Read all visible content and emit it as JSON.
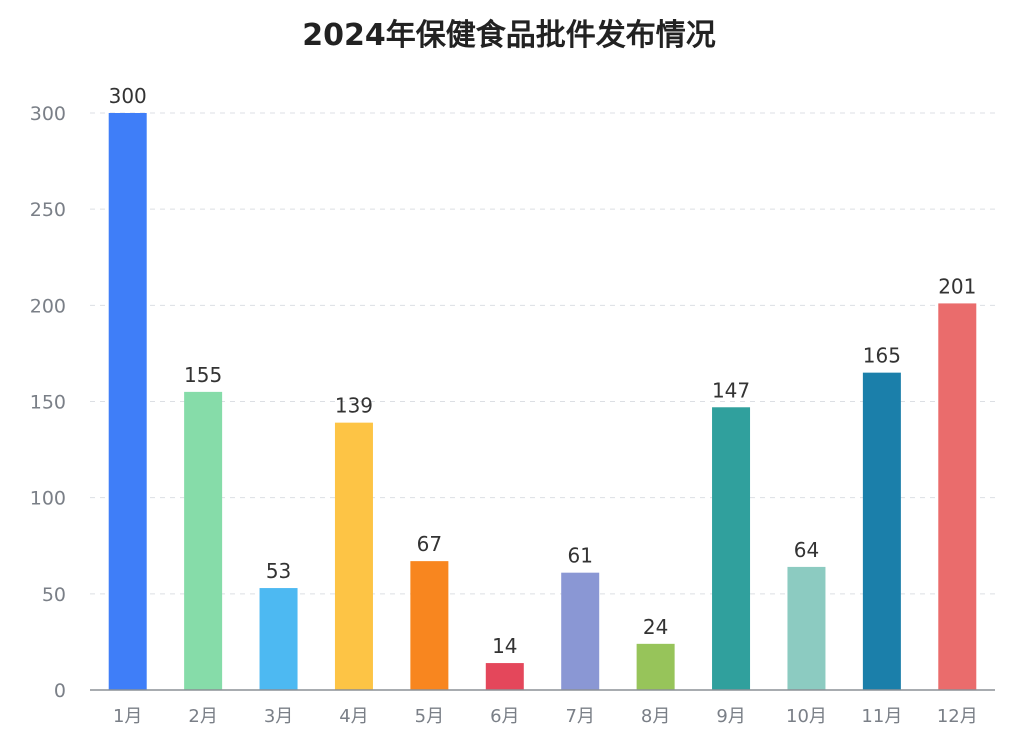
{
  "chart_data": {
    "type": "bar",
    "title": "2024年保健食品批件发布情况",
    "xlabel": "",
    "ylabel": "",
    "ylim": [
      0,
      300
    ],
    "yticks": [
      0,
      50,
      100,
      150,
      200,
      250,
      300
    ],
    "grid": true,
    "legend": "none",
    "categories": [
      "1月",
      "2月",
      "3月",
      "4月",
      "5月",
      "6月",
      "7月",
      "8月",
      "9月",
      "10月",
      "11月",
      "12月"
    ],
    "values": [
      300,
      155,
      53,
      139,
      67,
      14,
      61,
      24,
      147,
      64,
      165,
      201
    ],
    "colors": [
      "#3f7ef8",
      "#86dca9",
      "#4db9f2",
      "#fdc445",
      "#f8861f",
      "#e4475b",
      "#8a97d4",
      "#97c45a",
      "#30a09d",
      "#8ccbc1",
      "#1b7faa",
      "#ea6c6c"
    ]
  }
}
